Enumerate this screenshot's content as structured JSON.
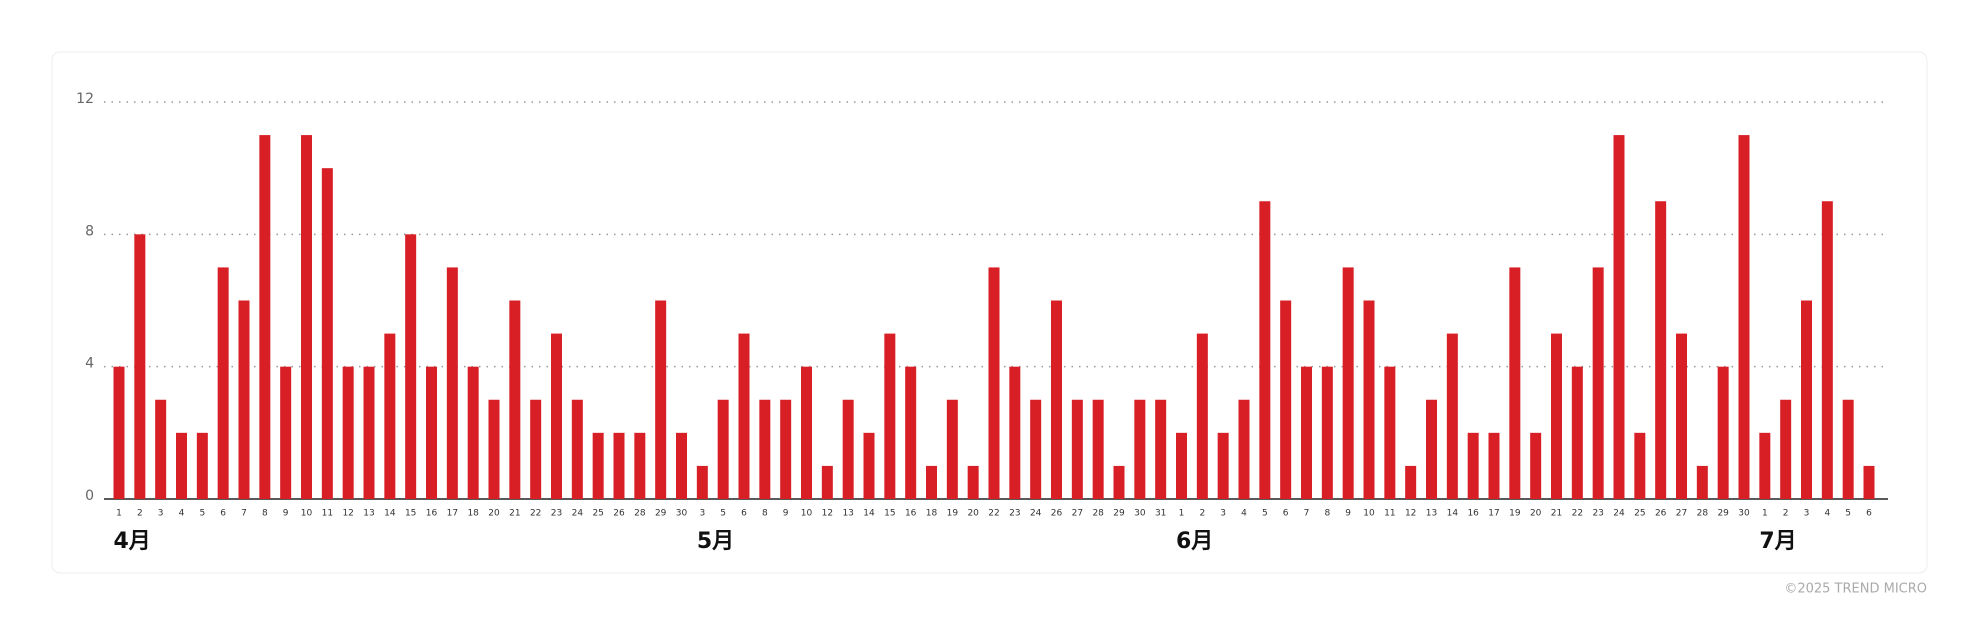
{
  "chart_data": {
    "type": "bar",
    "color": "#d91f26",
    "ylim": [
      0,
      12
    ],
    "yticks": [
      0,
      4,
      8,
      12
    ],
    "grid": true,
    "groups": [
      {
        "name": "4月",
        "categories": [
          "1",
          "2",
          "3",
          "4",
          "5",
          "6",
          "7",
          "8",
          "9",
          "10",
          "11",
          "12",
          "13",
          "14",
          "15",
          "16",
          "17",
          "18",
          "20",
          "21",
          "22",
          "23",
          "24",
          "25",
          "26",
          "28",
          "29",
          "30"
        ],
        "values": [
          4,
          8,
          3,
          2,
          2,
          7,
          6,
          11,
          4,
          11,
          10,
          4,
          4,
          5,
          8,
          4,
          7,
          4,
          3,
          6,
          3,
          5,
          3,
          2,
          2,
          2,
          6,
          2
        ]
      },
      {
        "name": "5月",
        "categories": [
          "3",
          "5",
          "6",
          "8",
          "9",
          "10",
          "12",
          "13",
          "14",
          "15",
          "16",
          "18",
          "19",
          "20",
          "22",
          "23",
          "24",
          "26",
          "27",
          "28",
          "29",
          "30",
          "31"
        ],
        "values": [
          1,
          3,
          5,
          3,
          3,
          4,
          1,
          3,
          2,
          5,
          4,
          1,
          3,
          1,
          7,
          4,
          3,
          6,
          3,
          3,
          1,
          3,
          3
        ]
      },
      {
        "name": "6月",
        "categories": [
          "1",
          "2",
          "3",
          "4",
          "5",
          "6",
          "7",
          "8",
          "9",
          "10",
          "11",
          "12",
          "13",
          "14",
          "16",
          "17",
          "19",
          "20",
          "21",
          "22",
          "23",
          "24",
          "25",
          "26",
          "27",
          "28",
          "29",
          "30"
        ],
        "values": [
          2,
          5,
          2,
          3,
          9,
          6,
          4,
          4,
          7,
          6,
          4,
          1,
          3,
          5,
          2,
          2,
          7,
          2,
          5,
          4,
          7,
          11,
          2,
          9,
          5,
          1,
          4,
          11
        ]
      },
      {
        "name": "7月",
        "categories": [
          "1",
          "2",
          "3",
          "4",
          "5",
          "6"
        ],
        "values": [
          2,
          3,
          6,
          9,
          3,
          1
        ]
      }
    ]
  },
  "footer": "©2025 TREND MICRO"
}
